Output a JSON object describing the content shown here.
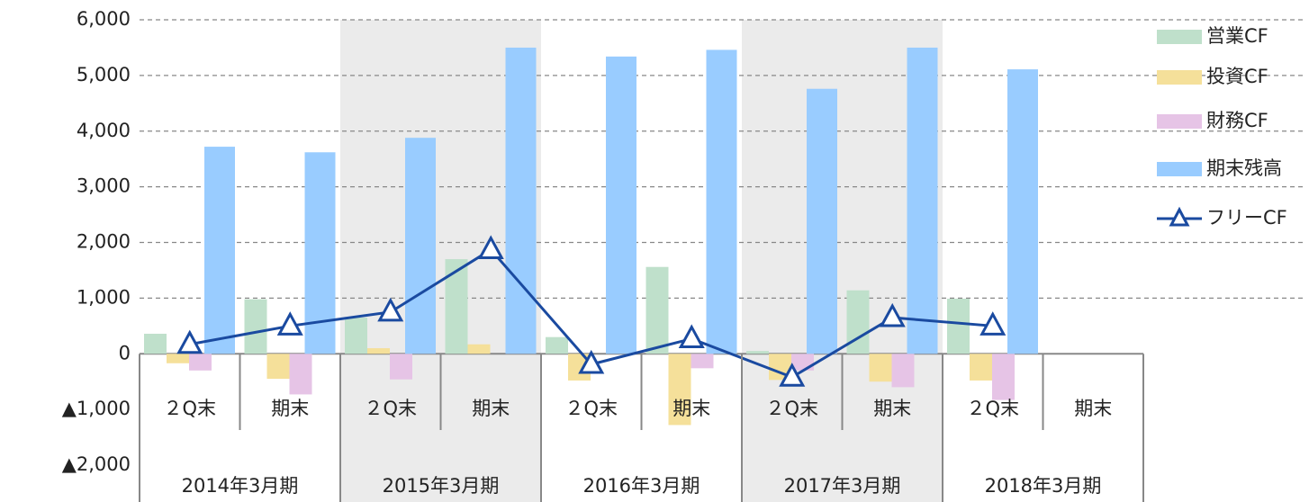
{
  "chart_data": {
    "type": "bar",
    "year_groups": [
      "2014年3月期",
      "2015年3月期",
      "2016年3月期",
      "2017年3月期",
      "2018年3月期"
    ],
    "categories": [
      "２Q末",
      "期末",
      "２Q末",
      "期末",
      "２Q末",
      "期末",
      "２Q末",
      "期末",
      "２Q末",
      "期末"
    ],
    "series": [
      {
        "name": "営業CF",
        "color": "#bfe0cb",
        "values": [
          360,
          980,
          650,
          1700,
          300,
          1560,
          50,
          1140,
          990,
          null
        ]
      },
      {
        "name": "投資CF",
        "color": "#f5e09a",
        "values": [
          -170,
          -450,
          100,
          170,
          -480,
          -1280,
          -470,
          -500,
          -480,
          null
        ]
      },
      {
        "name": "財務CF",
        "color": "#e6c4e6",
        "values": [
          -300,
          -730,
          -460,
          null,
          null,
          -260,
          -300,
          -600,
          -830,
          null
        ]
      },
      {
        "name": "期末残高",
        "color": "#99ccff",
        "values": [
          3720,
          3620,
          3880,
          5500,
          5340,
          5460,
          4760,
          5500,
          5110,
          null
        ]
      },
      {
        "name": "フリーCF",
        "type": "line",
        "color": "#1a4aa0",
        "values": [
          170,
          500,
          750,
          1870,
          -190,
          270,
          -420,
          650,
          500,
          null
        ]
      }
    ],
    "ylim": [
      -2000,
      6000
    ],
    "yticks": [
      {
        "value": -2000,
        "label": "▲2,000"
      },
      {
        "value": -1000,
        "label": "▲1,000"
      },
      0,
      {
        "value": 1000,
        "label": "1,000"
      },
      {
        "value": 2000,
        "label": "2,000"
      },
      {
        "value": 3000,
        "label": "3,000"
      },
      {
        "value": 4000,
        "label": "4,000"
      },
      {
        "value": 5000,
        "label": "5,000"
      },
      {
        "value": 6000,
        "label": "6,000"
      }
    ],
    "grid": true,
    "legend": "right"
  }
}
